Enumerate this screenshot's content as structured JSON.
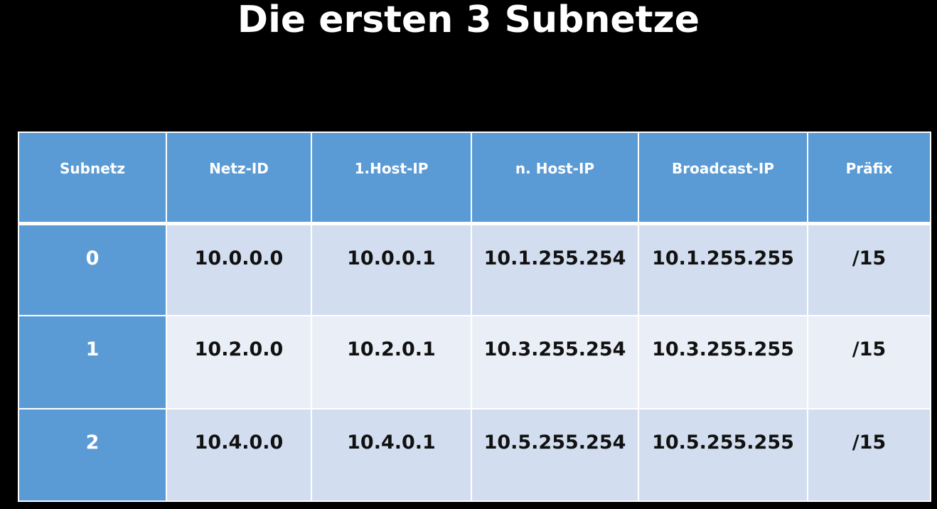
{
  "title": "Die ersten 3 Subnetze",
  "table": {
    "headers": [
      "Subnetz",
      "Netz-ID",
      "1.Host-IP",
      "n. Host-IP",
      "Broadcast-IP",
      "Präfix"
    ],
    "rows": [
      [
        "0",
        "10.0.0.0",
        "10.0.0.1",
        "10.1.255.254",
        "10.1.255.255",
        "/15"
      ],
      [
        "1",
        "10.2.0.0",
        "10.2.0.1",
        "10.3.255.254",
        "10.3.255.255",
        "/15"
      ],
      [
        "2",
        "10.4.0.0",
        "10.4.0.1",
        "10.5.255.254",
        "10.5.255.255",
        "/15"
      ]
    ]
  },
  "colors": {
    "background": "#000000",
    "header_fill": "#5b9bd5",
    "row_odd_fill": "#d2deef",
    "row_even_fill": "#eaeff7"
  }
}
